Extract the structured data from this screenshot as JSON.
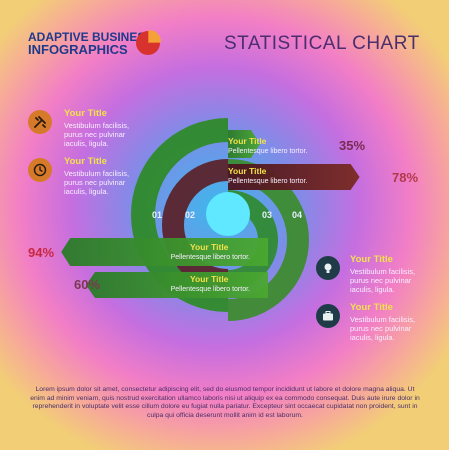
{
  "header": {
    "brand_line1": "ADAPTIVE BUSINESS",
    "brand_line2": "INFOGRAPHICS",
    "title": "STATISTICAL CHART"
  },
  "left_items": [
    {
      "icon": "tools-icon",
      "title": "Your Title",
      "text": "Vestibulum facilisis, purus nec pulvinar iaculis, ligula."
    },
    {
      "icon": "clock-icon",
      "title": "Your Title",
      "text": "Vestibulum facilisis, purus nec pulvinar iaculis, ligula."
    }
  ],
  "right_items": [
    {
      "icon": "lightbulb-icon",
      "title": "Your Title",
      "text": "Vestibulum facilisis, purus nec pulvinar iaculis, ligula."
    },
    {
      "icon": "briefcase-icon",
      "title": "Your Title",
      "text": "Vestibulum facilisis, purus nec pulvinar iaculis, ligula."
    }
  ],
  "chart_data": {
    "type": "bar",
    "categories": [
      "01",
      "02",
      "03",
      "04"
    ],
    "values": [
      35,
      78,
      94,
      60
    ],
    "value_labels": [
      "35%",
      "78%",
      "94%",
      "60%"
    ],
    "bar_titles": [
      "Your Title",
      "Your Title",
      "Your Title",
      "Your Title"
    ],
    "bar_texts": [
      "Pellentesque libero tortor.",
      "Pellentesque libero tortor.",
      "Pellentesque libero tortor.",
      "Pellentesque libero tortor."
    ]
  },
  "colors": {
    "green": "#3d9a2a",
    "dark_red": "#6a1f22",
    "pct_35": "#7a2b50",
    "pct_78": "#b23a4a",
    "pct_94": "#c8283e",
    "pct_60": "#7a3a50"
  },
  "footer": {
    "text": "Lorem ipsum dolor sit amet, consectetur adipiscing elit, sed do eiusmod tempor incididunt ut labore et dolore magna aliqua. Ut enim ad minim veniam, quis nostrud exercitation ullamco laboris nisi ut aliquip ex ea commodo consequat. Duis aute irure dolor in reprehenderit in voluptate velit esse cillum dolore eu fugiat nulla pariatur. Excepteur sint occaecat cupidatat non proident, sunt in culpa qui officia deserunt mollit anim id est laborum."
  }
}
